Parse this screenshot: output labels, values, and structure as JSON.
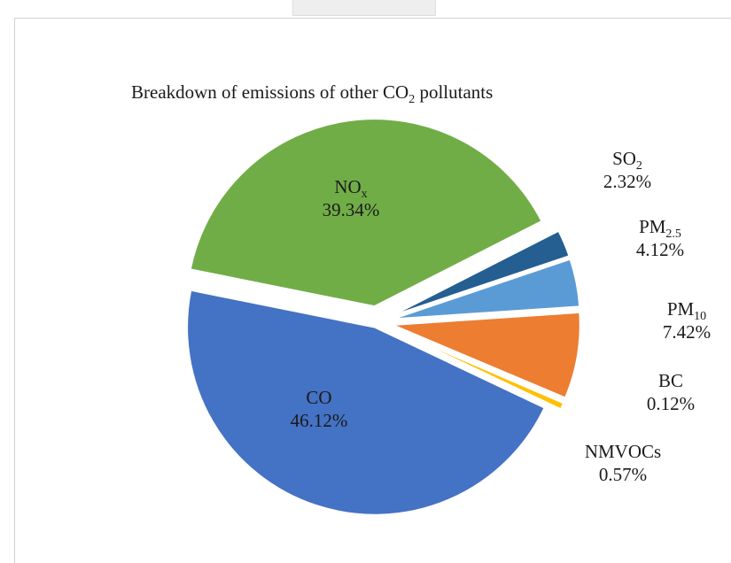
{
  "chart_data": {
    "type": "pie",
    "title": "Breakdown of emissions of other CO2 pollutants",
    "title_parts": {
      "before": "Breakdown of emissions of other CO",
      "sub": "2",
      "after": " pollutants"
    },
    "exploded": true,
    "slices": [
      {
        "id": "so2",
        "label": "SO2",
        "label_main": "SO",
        "label_sub": "2",
        "value": 2.32,
        "display": "2.32%",
        "color": "#255E91"
      },
      {
        "id": "pm25",
        "label": "PM2.5",
        "label_main": "PM",
        "label_sub": "2.5",
        "value": 4.12,
        "display": "4.12%",
        "color": "#5B9BD5"
      },
      {
        "id": "pm10",
        "label": "PM10",
        "label_main": "PM",
        "label_sub": "10",
        "value": 7.42,
        "display": "7.42%",
        "color": "#ED7D31"
      },
      {
        "id": "bc",
        "label": "BC",
        "label_main": "BC",
        "label_sub": "",
        "value": 0.12,
        "display": "0.12%",
        "color": "#A5A5A5"
      },
      {
        "id": "nmvocs",
        "label": "NMVOCs",
        "label_main": "NMVOCs",
        "label_sub": "",
        "value": 0.57,
        "display": "0.57%",
        "color": "#FFC000"
      },
      {
        "id": "co",
        "label": "CO",
        "label_main": "CO",
        "label_sub": "",
        "value": 46.12,
        "display": "46.12%",
        "color": "#4472C4"
      },
      {
        "id": "nox",
        "label": "NOx",
        "label_main": "NO",
        "label_sub": "x",
        "value": 39.34,
        "display": "39.34%",
        "color": "#70AD47"
      }
    ]
  }
}
